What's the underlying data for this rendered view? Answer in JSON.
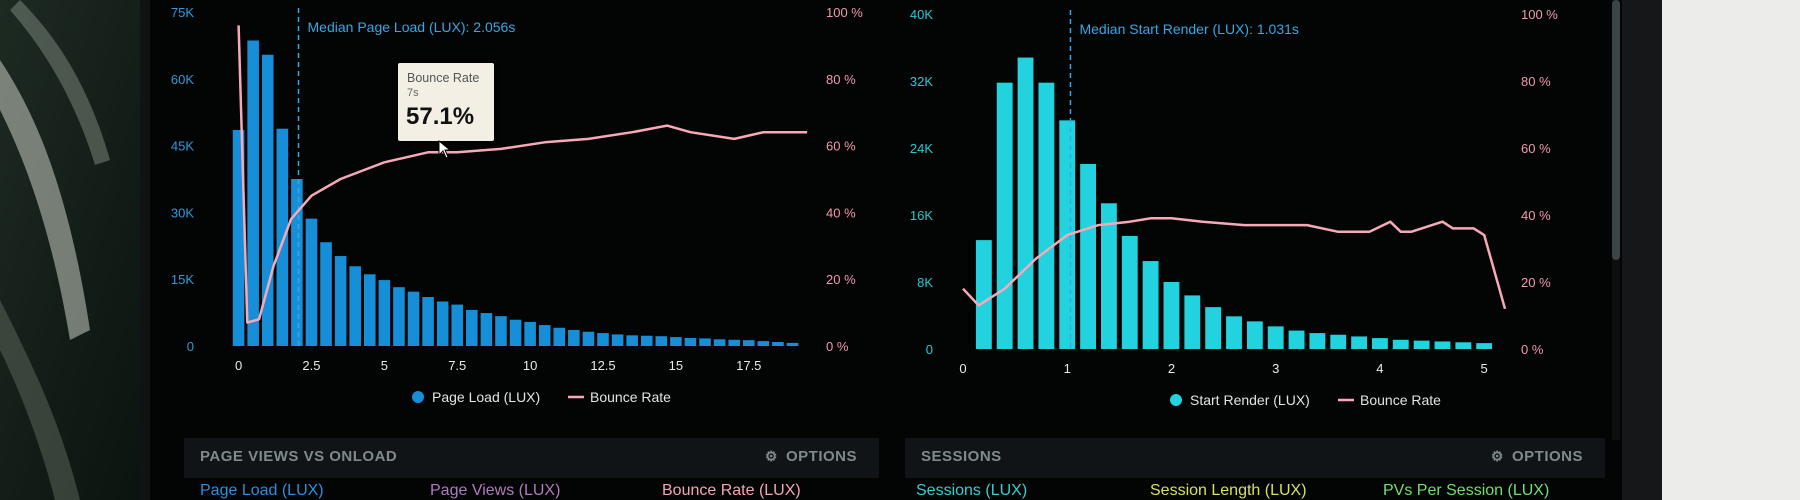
{
  "chart_data": [
    {
      "type": "bar",
      "bins_x": [
        0,
        0.5,
        1,
        1.5,
        2,
        2.5,
        3,
        3.5,
        4,
        4.5,
        5,
        5.5,
        6,
        6.5,
        7,
        7.5,
        8,
        8.5,
        9,
        9.5,
        10,
        10.5,
        11,
        11.5,
        12,
        12.5,
        13,
        13.5,
        14,
        14.5,
        15,
        15.5,
        16,
        16.5,
        17,
        17.5,
        18,
        18.5,
        19
      ],
      "values": [
        48500,
        68600,
        65400,
        48800,
        37500,
        28600,
        23300,
        20200,
        17900,
        16100,
        14800,
        13200,
        12200,
        11000,
        10000,
        9300,
        8100,
        7400,
        6700,
        5900,
        5400,
        4700,
        4100,
        3600,
        3200,
        2900,
        2600,
        2400,
        2300,
        2200,
        2000,
        1800,
        1700,
        1500,
        1400,
        1300,
        1100,
        900,
        700
      ],
      "bounce_rate": {
        "x": [
          0,
          0.3,
          0.7,
          1.2,
          1.8,
          2.5,
          3.5,
          5,
          6.5,
          7.5,
          9,
          10.5,
          12,
          13.5,
          14.7,
          15.5,
          17,
          18,
          19.5
        ],
        "y": [
          96,
          7,
          8,
          24,
          38,
          45,
          50,
          55,
          58,
          58,
          59,
          61,
          62,
          64,
          66,
          64,
          62,
          64,
          64
        ]
      },
      "xticks": [
        "0",
        "2.5",
        "5",
        "7.5",
        "10",
        "12.5",
        "15",
        "17.5"
      ],
      "yticks_left": [
        "0",
        "15K",
        "30K",
        "45K",
        "60K",
        "75K"
      ],
      "yticks_right": [
        "0 %",
        "20 %",
        "40 %",
        "60 %",
        "80 %",
        "100 %"
      ],
      "ylim": [
        0,
        75000
      ],
      "ylim_right": [
        0,
        100
      ],
      "xlim": [
        -0.5,
        19.6
      ],
      "median_x": 2.056,
      "median_label": "Median Page Load (LUX): 2.056s",
      "legend": [
        "Page Load (LUX)",
        "Bounce Rate"
      ],
      "tooltip": {
        "title": "Bounce Rate",
        "sub": "7s",
        "value": "57.1%"
      }
    },
    {
      "type": "bar",
      "bins_x": [
        0.2,
        0.4,
        0.6,
        0.8,
        1.0,
        1.2,
        1.4,
        1.6,
        1.8,
        2.0,
        2.2,
        2.4,
        2.6,
        2.8,
        3.0,
        3.2,
        3.4,
        3.6,
        3.8,
        4.0,
        4.2,
        4.4,
        4.6,
        4.8,
        5.0
      ],
      "values": [
        13000,
        31800,
        34800,
        31800,
        27300,
        22100,
        17400,
        13500,
        10500,
        8000,
        6400,
        5000,
        3900,
        3300,
        2700,
        2200,
        1900,
        1700,
        1500,
        1300,
        1100,
        1000,
        900,
        800,
        700
      ],
      "bounce_rate": {
        "x": [
          0,
          0.15,
          0.4,
          0.7,
          1.0,
          1.3,
          1.6,
          1.8,
          2.0,
          2.3,
          2.7,
          3.0,
          3.3,
          3.6,
          3.9,
          4.1,
          4.2,
          4.3,
          4.6,
          4.7,
          4.9,
          5.0,
          5.2
        ],
        "y": [
          18,
          13,
          18,
          27,
          34,
          37,
          38,
          39,
          39,
          38,
          37,
          37,
          37,
          35,
          35,
          38,
          35,
          35,
          38,
          36,
          36,
          34,
          12
        ]
      },
      "xticks": [
        "0",
        "1",
        "2",
        "3",
        "4",
        "5"
      ],
      "yticks_left": [
        "0",
        "8K",
        "16K",
        "24K",
        "32K",
        "40K"
      ],
      "yticks_right": [
        "0 %",
        "20 %",
        "40 %",
        "60 %",
        "80 %",
        "100 %"
      ],
      "ylim": [
        0,
        40000
      ],
      "ylim_right": [
        0,
        100
      ],
      "xlim": [
        0,
        5.2
      ],
      "median_x": 1.031,
      "median_label": "Median Start Render (LUX): 1.031s",
      "legend": [
        "Start Render (LUX)",
        "Bounce Rate"
      ]
    }
  ],
  "panels": {
    "left": {
      "title": "PAGE VIEWS VS ONLOAD",
      "options": "OPTIONS",
      "columns": [
        "Page Load (LUX)",
        "Page Views (LUX)",
        "Bounce Rate (LUX)"
      ]
    },
    "right": {
      "title": "SESSIONS",
      "options": "OPTIONS",
      "columns": [
        "Sessions (LUX)",
        "Session Length (LUX)",
        "PVs Per Session (LUX)"
      ]
    }
  },
  "colors": {
    "bar_left": "#168fd8",
    "bar_right": "#22d3df",
    "bounce": "#f7a9b8",
    "axis_left": "#2f9adf",
    "axis_right_chart": "#27c9d4",
    "axis_pct": "#f19aae",
    "median_line": "#35a8e6",
    "col_blue": "#2a8fe0",
    "col_purple": "#b27ac0",
    "col_pink": "#f3a5b5",
    "col_cyan": "#33d0d4",
    "col_yellow": "#d9e15a",
    "col_green": "#6fe06a"
  },
  "icons": {
    "options": "gear-icon",
    "cursor": "cursor-icon"
  }
}
